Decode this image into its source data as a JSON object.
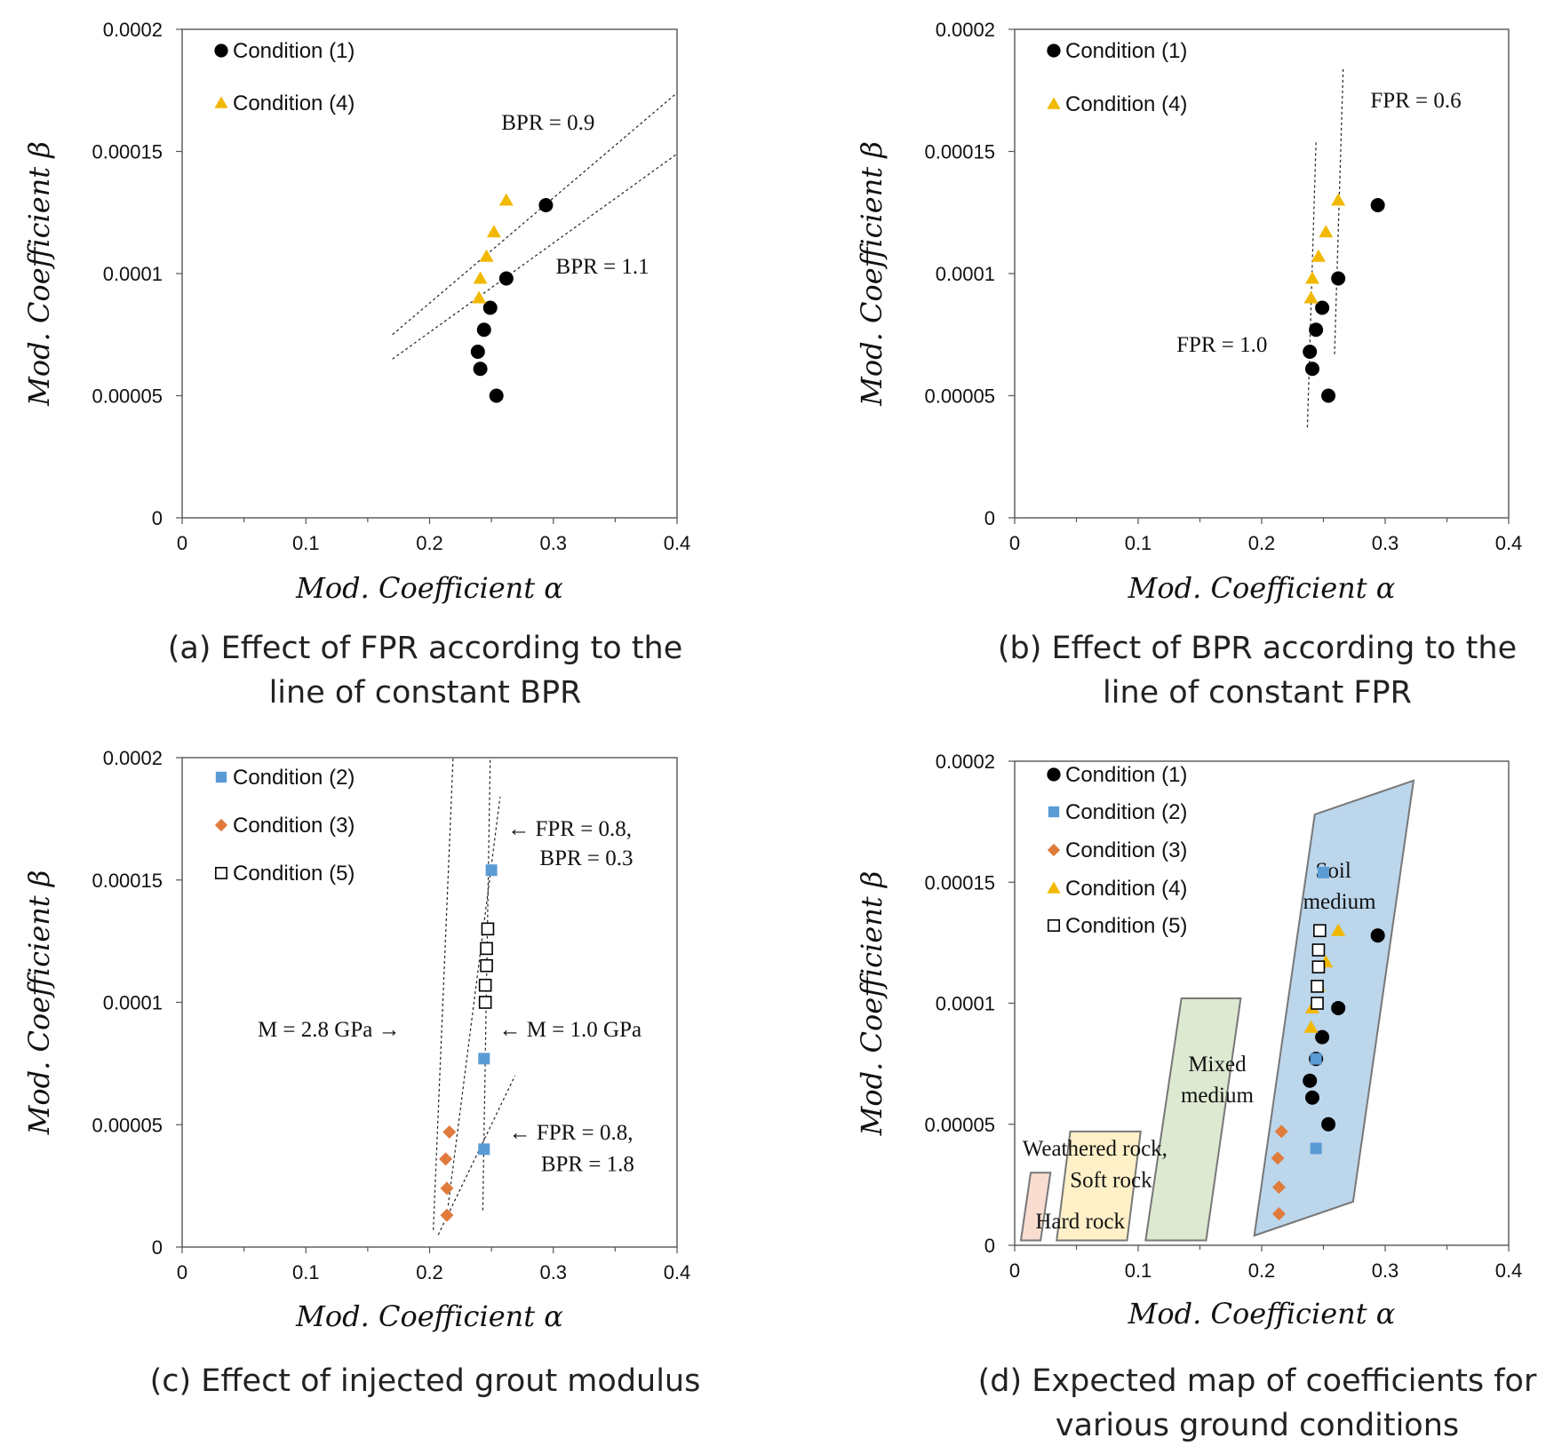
{
  "colors": {
    "condition_1": "#000000",
    "condition_2": "#5b9bd5",
    "condition_3": "#e07b3c",
    "condition_4": "#f2b800",
    "condition_5": "#ffffff",
    "hard_rock": "#f8ddd0",
    "weathered": "#fff0c8",
    "mixed": "#dde9d0",
    "soil": "#bcd6ec"
  },
  "chart_data": [
    {
      "id": "a",
      "type": "scatter",
      "caption": [
        "(a) Effect of FPR according to the",
        "line of constant BPR"
      ],
      "xlabel": "Mod. Coefficient α",
      "ylabel": "Mod. Coefficient β",
      "xlim": [
        0,
        0.4
      ],
      "ylim": [
        0,
        0.0002
      ],
      "x_ticks": [
        "0",
        "0.1",
        "0.2",
        "0.3",
        "0.4"
      ],
      "y_ticks": [
        "0",
        "0.00005",
        "0.0001",
        "0.00015",
        "0.0002"
      ],
      "legend": [
        "Condition (1)",
        "Condition (4)"
      ],
      "series": [
        {
          "name": "Condition (1)",
          "marker": "circle",
          "points": [
            [
              0.294,
              0.000128
            ],
            [
              0.262,
              9.8e-05
            ],
            [
              0.249,
              8.6e-05
            ],
            [
              0.244,
              7.7e-05
            ],
            [
              0.239,
              6.8e-05
            ],
            [
              0.241,
              6.1e-05
            ],
            [
              0.254,
              5e-05
            ]
          ]
        },
        {
          "name": "Condition (4)",
          "marker": "triangle",
          "points": [
            [
              0.262,
              0.00013
            ],
            [
              0.252,
              0.000117
            ],
            [
              0.246,
              0.000107
            ],
            [
              0.241,
              9.8e-05
            ],
            [
              0.24,
              9e-05
            ]
          ]
        }
      ],
      "lines": [
        {
          "label": "BPR = 0.9",
          "from": [
            0.17,
            7.5e-05
          ],
          "to": [
            0.4,
            0.000174
          ]
        },
        {
          "label": "BPR = 1.1",
          "from": [
            0.17,
            6.5e-05
          ],
          "to": [
            0.4,
            0.000149
          ]
        }
      ]
    },
    {
      "id": "b",
      "type": "scatter",
      "caption": [
        "(b) Effect of BPR according to the",
        "line of constant FPR"
      ],
      "xlabel": "Mod. Coefficient α",
      "ylabel": "Mod. Coefficient β",
      "xlim": [
        0,
        0.4
      ],
      "ylim": [
        0,
        0.0002
      ],
      "x_ticks": [
        "0",
        "0.1",
        "0.2",
        "0.3",
        "0.4"
      ],
      "y_ticks": [
        "0",
        "0.00005",
        "0.0001",
        "0.00015",
        "0.0002"
      ],
      "legend": [
        "Condition (1)",
        "Condition (4)"
      ],
      "series": [
        {
          "name": "Condition (1)",
          "marker": "circle",
          "points": [
            [
              0.294,
              0.000128
            ],
            [
              0.262,
              9.8e-05
            ],
            [
              0.249,
              8.6e-05
            ],
            [
              0.244,
              7.7e-05
            ],
            [
              0.239,
              6.8e-05
            ],
            [
              0.241,
              6.1e-05
            ],
            [
              0.254,
              5e-05
            ]
          ]
        },
        {
          "name": "Condition (4)",
          "marker": "triangle",
          "points": [
            [
              0.262,
              0.00013
            ],
            [
              0.252,
              0.000117
            ],
            [
              0.246,
              0.000107
            ],
            [
              0.241,
              9.8e-05
            ],
            [
              0.24,
              9e-05
            ]
          ]
        }
      ],
      "lines": [
        {
          "label": "FPR = 0.6",
          "from": [
            0.259,
            6.7e-05
          ],
          "to": [
            0.266,
            0.000184
          ]
        },
        {
          "label": "FPR = 1.0",
          "from": [
            0.237,
            3.7e-05
          ],
          "to": [
            0.244,
            0.000154
          ]
        }
      ]
    },
    {
      "id": "c",
      "type": "scatter",
      "caption": [
        "(c) Effect of injected grout modulus"
      ],
      "xlabel": "Mod. Coefficient α",
      "ylabel": "Mod. Coefficient β",
      "xlim": [
        0,
        0.4
      ],
      "ylim": [
        0,
        0.0002
      ],
      "x_ticks": [
        "0",
        "0.1",
        "0.2",
        "0.3",
        "0.4"
      ],
      "y_ticks": [
        "0",
        "0.00005",
        "0.0001",
        "0.00015",
        "0.0002"
      ],
      "legend": [
        "Condition (2)",
        "Condition (3)",
        "Condition (5)"
      ],
      "series": [
        {
          "name": "Condition (2)",
          "marker": "square",
          "points": [
            [
              0.25,
              0.000154
            ],
            [
              0.246,
              0.000115
            ],
            [
              0.244,
              7.7e-05
            ],
            [
              0.244,
              4e-05
            ]
          ]
        },
        {
          "name": "Condition (3)",
          "marker": "diamond",
          "points": [
            [
              0.216,
              4.7e-05
            ],
            [
              0.213,
              3.6e-05
            ],
            [
              0.214,
              2.4e-05
            ],
            [
              0.214,
              1.3e-05
            ]
          ]
        },
        {
          "name": "Condition (5)",
          "marker": "open-square",
          "points": [
            [
              0.247,
              0.00013
            ],
            [
              0.246,
              0.000122
            ],
            [
              0.246,
              0.000115
            ],
            [
              0.245,
              0.000107
            ],
            [
              0.245,
              0.0001
            ]
          ]
        }
      ],
      "lines": [
        {
          "label": "M = 2.8 GPa",
          "from": [
            0.203,
            7e-06
          ],
          "to": [
            0.219,
            0.0002
          ]
        },
        {
          "label": "M = 1.0 GPa",
          "from": [
            0.243,
            1.5e-05
          ],
          "to": [
            0.249,
            0.0002
          ]
        },
        {
          "label": "FPR = 0.8, BPR = 0.3",
          "from": [
            0.215,
            1.7e-05
          ],
          "to": [
            0.257,
            0.000184
          ]
        },
        {
          "label": "FPR = 0.8, BPR = 1.8",
          "from": [
            0.207,
            5e-06
          ],
          "to": [
            0.269,
            7e-05
          ]
        }
      ],
      "annotations": [
        {
          "text": "← FPR = 0.8,"
        },
        {
          "text": "BPR = 0.3"
        },
        {
          "text": "M = 2.8 GPa →"
        },
        {
          "text": "← M = 1.0 GPa"
        },
        {
          "text": "← FPR = 0.8,"
        },
        {
          "text": "BPR = 1.8"
        }
      ]
    },
    {
      "id": "d",
      "type": "scatter",
      "caption": [
        "(d) Expected map of coefficients for",
        "various ground conditions"
      ],
      "xlabel": "Mod. Coefficient α",
      "ylabel": "Mod. Coefficient β",
      "xlim": [
        0,
        0.4
      ],
      "ylim": [
        0,
        0.0002
      ],
      "x_ticks": [
        "0",
        "0.1",
        "0.2",
        "0.3",
        "0.4"
      ],
      "y_ticks": [
        "0",
        "0.00005",
        "0.0001",
        "0.00015",
        "0.0002"
      ],
      "legend": [
        "Condition (1)",
        "Condition (2)",
        "Condition (3)",
        "Condition (4)",
        "Condition (5)"
      ],
      "series": [
        {
          "name": "Condition (1)",
          "marker": "circle",
          "points": [
            [
              0.294,
              0.000128
            ],
            [
              0.262,
              9.8e-05
            ],
            [
              0.249,
              8.6e-05
            ],
            [
              0.244,
              7.7e-05
            ],
            [
              0.239,
              6.8e-05
            ],
            [
              0.241,
              6.1e-05
            ],
            [
              0.254,
              5e-05
            ]
          ]
        },
        {
          "name": "Condition (2)",
          "marker": "square",
          "points": [
            [
              0.25,
              0.000154
            ],
            [
              0.246,
              0.000115
            ],
            [
              0.244,
              7.7e-05
            ],
            [
              0.244,
              4e-05
            ]
          ]
        },
        {
          "name": "Condition (3)",
          "marker": "diamond",
          "points": [
            [
              0.216,
              4.7e-05
            ],
            [
              0.213,
              3.6e-05
            ],
            [
              0.214,
              2.4e-05
            ],
            [
              0.214,
              1.3e-05
            ]
          ]
        },
        {
          "name": "Condition (4)",
          "marker": "triangle",
          "points": [
            [
              0.262,
              0.00013
            ],
            [
              0.252,
              0.000117
            ],
            [
              0.246,
              0.000107
            ],
            [
              0.241,
              9.8e-05
            ],
            [
              0.24,
              9e-05
            ]
          ]
        },
        {
          "name": "Condition (5)",
          "marker": "open-square",
          "points": [
            [
              0.247,
              0.00013
            ],
            [
              0.246,
              0.000122
            ],
            [
              0.246,
              0.000115
            ],
            [
              0.245,
              0.000107
            ],
            [
              0.245,
              0.0001
            ]
          ]
        }
      ],
      "regions": [
        {
          "name": "Hard rock",
          "label_lines": [
            "Hard rock"
          ],
          "polygon": [
            [
              0.005,
              2e-06
            ],
            [
              0.013,
              3e-05
            ],
            [
              0.029,
              3e-05
            ],
            [
              0.021,
              2e-06
            ]
          ]
        },
        {
          "name": "Weathered rock, Soft rock",
          "label_lines": [
            "Weathered rock,",
            "Soft rock"
          ],
          "polygon": [
            [
              0.034,
              2e-06
            ],
            [
              0.045,
              4.7e-05
            ],
            [
              0.102,
              4.7e-05
            ],
            [
              0.091,
              2e-06
            ]
          ]
        },
        {
          "name": "Mixed medium",
          "label_lines": [
            "Mixed",
            "medium"
          ],
          "polygon": [
            [
              0.106,
              2e-06
            ],
            [
              0.135,
              0.000102
            ],
            [
              0.183,
              0.000102
            ],
            [
              0.155,
              2e-06
            ]
          ]
        },
        {
          "name": "Soil medium",
          "label_lines": [
            "Soil",
            "medium"
          ],
          "polygon": [
            [
              0.194,
              4e-06
            ],
            [
              0.243,
              0.000178
            ],
            [
              0.323,
              0.000192
            ],
            [
              0.274,
              1.8e-05
            ]
          ]
        }
      ]
    }
  ]
}
